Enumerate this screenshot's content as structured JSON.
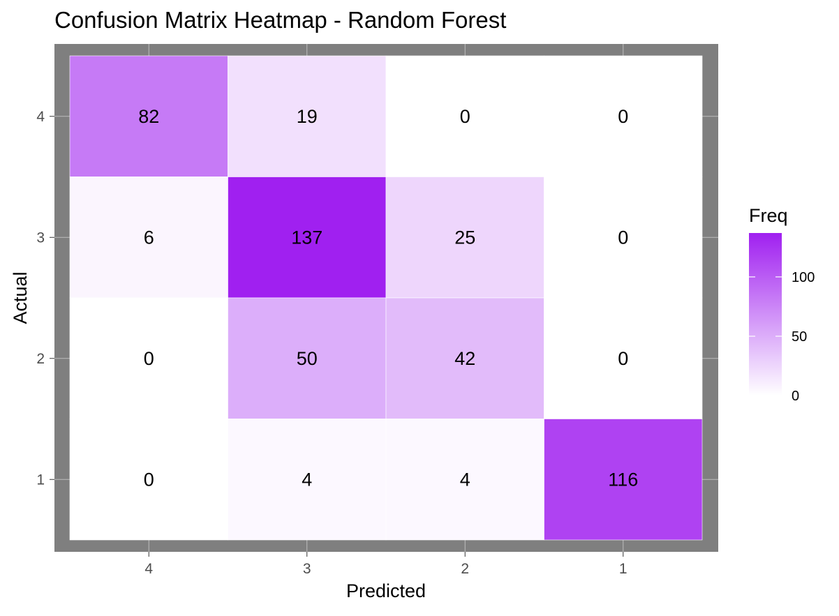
{
  "chart_data": {
    "type": "heatmap",
    "title": "Confusion Matrix Heatmap - Random Forest",
    "xlabel": "Predicted",
    "ylabel": "Actual",
    "x_categories": [
      "4",
      "3",
      "2",
      "1"
    ],
    "y_categories": [
      "4",
      "3",
      "2",
      "1"
    ],
    "values": [
      [
        82,
        19,
        0,
        0
      ],
      [
        6,
        137,
        25,
        0
      ],
      [
        0,
        50,
        42,
        0
      ],
      [
        0,
        4,
        4,
        116
      ]
    ],
    "legend": {
      "title": "Freq",
      "ticks": [
        0,
        50,
        100
      ],
      "min": 0,
      "max": 137,
      "placement": "right"
    },
    "colors": {
      "low": "#ffffff",
      "high": "#a020f0",
      "panel_background": "#7f7f7f",
      "grid": "#bdbdbd",
      "axis_text": "#4d4d4d",
      "text": "#000000"
    },
    "grid": true
  }
}
